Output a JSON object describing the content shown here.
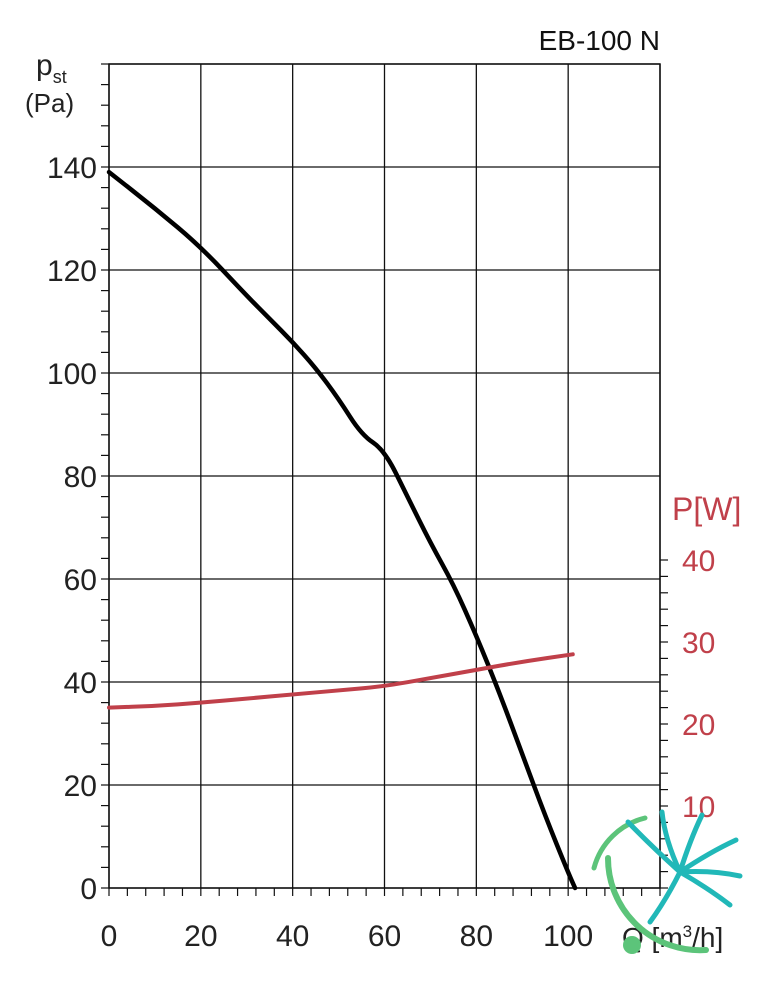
{
  "chart_data": {
    "type": "line",
    "title": "EB-100 N",
    "y_label_main": "p",
    "y_label_sub": "st",
    "y_label_unit": "(Pa)",
    "x_label_text": "Q [m",
    "x_label_sup": "3",
    "x_label_end": "/h]",
    "y2_label": "P[W]",
    "xlim": [
      0,
      120
    ],
    "ylim": [
      0,
      160
    ],
    "y2lim": [
      0,
      40
    ],
    "x_ticks": [
      0,
      20,
      40,
      60,
      80,
      100
    ],
    "y_ticks": [
      0,
      20,
      40,
      60,
      80,
      100,
      120,
      140
    ],
    "y2_ticks": [
      10,
      20,
      30,
      40
    ],
    "grid": true,
    "series": [
      {
        "axis": "left",
        "color": "#000000",
        "points": [
          [
            0,
            139
          ],
          [
            10,
            132
          ],
          [
            20,
            124.5
          ],
          [
            30,
            115
          ],
          [
            35,
            110.5
          ],
          [
            40,
            106
          ],
          [
            45,
            101
          ],
          [
            50,
            95
          ],
          [
            55,
            88
          ],
          [
            60,
            85
          ],
          [
            65,
            76
          ],
          [
            70,
            67
          ],
          [
            75,
            59
          ],
          [
            80,
            49
          ],
          [
            85,
            38
          ],
          [
            90,
            26
          ],
          [
            95,
            14
          ],
          [
            100,
            3
          ],
          [
            101.5,
            0
          ]
        ]
      },
      {
        "axis": "right",
        "color": "#c0404a",
        "points": [
          [
            0,
            22
          ],
          [
            10,
            22.2
          ],
          [
            20,
            22.6
          ],
          [
            30,
            23.1
          ],
          [
            40,
            23.6
          ],
          [
            50,
            24.1
          ],
          [
            60,
            24.6
          ],
          [
            70,
            25.6
          ],
          [
            80,
            26.6
          ],
          [
            90,
            27.6
          ],
          [
            101,
            28.5
          ]
        ]
      }
    ]
  },
  "colors": {
    "grid": "#111111",
    "main_line": "#000000",
    "power_line": "#c0404a",
    "logo_teal": "#21b8b8",
    "logo_green": "#5cc47a"
  },
  "logo": {
    "icon": "fan-blades-logo"
  }
}
